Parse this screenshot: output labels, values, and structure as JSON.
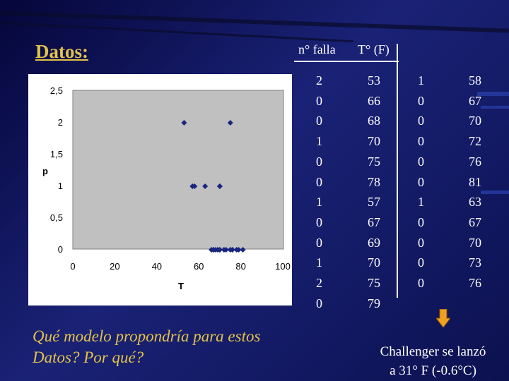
{
  "slide": {
    "title": "Datos:",
    "header_failures": "n° falla",
    "header_temp": "T° (F)",
    "question": "Qué modelo propondría para estos Datos? Por qué?",
    "note_line1": "Challenger se lanzó",
    "note_line2": "a 31° F (-0.6°C)",
    "colors": {
      "title": "#e2c24a",
      "marker": "#1a2580",
      "plot_bg": "#c0c0c0",
      "arrow": "#f0a020"
    }
  },
  "table": {
    "left": {
      "failures": [
        "2",
        "0",
        "0",
        "1",
        "0",
        "0",
        "1",
        "0",
        "0",
        "1",
        "2",
        "0"
      ],
      "temps": [
        "53",
        "66",
        "68",
        "70",
        "75",
        "78",
        "57",
        "67",
        "69",
        "70",
        "75",
        "79"
      ]
    },
    "right": {
      "failures": [
        "1",
        "0",
        "0",
        "0",
        "0",
        "0",
        "1",
        "0",
        "0",
        "0",
        "0"
      ],
      "temps": [
        "58",
        "67",
        "70",
        "72",
        "76",
        "81",
        "63",
        "67",
        "70",
        "73",
        "76"
      ]
    }
  },
  "chart_data": {
    "type": "scatter",
    "xlabel": "T",
    "ylabel": "p",
    "xlim": [
      0,
      100
    ],
    "ylim": [
      0,
      2.5
    ],
    "xticks": [
      "0",
      "20",
      "40",
      "60",
      "80",
      "100"
    ],
    "yticks": [
      "0",
      "0,5",
      "1",
      "1,5",
      "2",
      "2,5"
    ],
    "grid": false,
    "legend": "none",
    "points": [
      {
        "x": 53,
        "y": 2
      },
      {
        "x": 66,
        "y": 0
      },
      {
        "x": 68,
        "y": 0
      },
      {
        "x": 70,
        "y": 1
      },
      {
        "x": 75,
        "y": 0
      },
      {
        "x": 78,
        "y": 0
      },
      {
        "x": 57,
        "y": 1
      },
      {
        "x": 67,
        "y": 0
      },
      {
        "x": 69,
        "y": 0
      },
      {
        "x": 70,
        "y": 1
      },
      {
        "x": 75,
        "y": 2
      },
      {
        "x": 79,
        "y": 0
      },
      {
        "x": 58,
        "y": 1
      },
      {
        "x": 67,
        "y": 0
      },
      {
        "x": 70,
        "y": 0
      },
      {
        "x": 72,
        "y": 0
      },
      {
        "x": 76,
        "y": 0
      },
      {
        "x": 81,
        "y": 0
      },
      {
        "x": 63,
        "y": 1
      },
      {
        "x": 67,
        "y": 0
      },
      {
        "x": 70,
        "y": 0
      },
      {
        "x": 73,
        "y": 0
      },
      {
        "x": 76,
        "y": 0
      }
    ]
  }
}
